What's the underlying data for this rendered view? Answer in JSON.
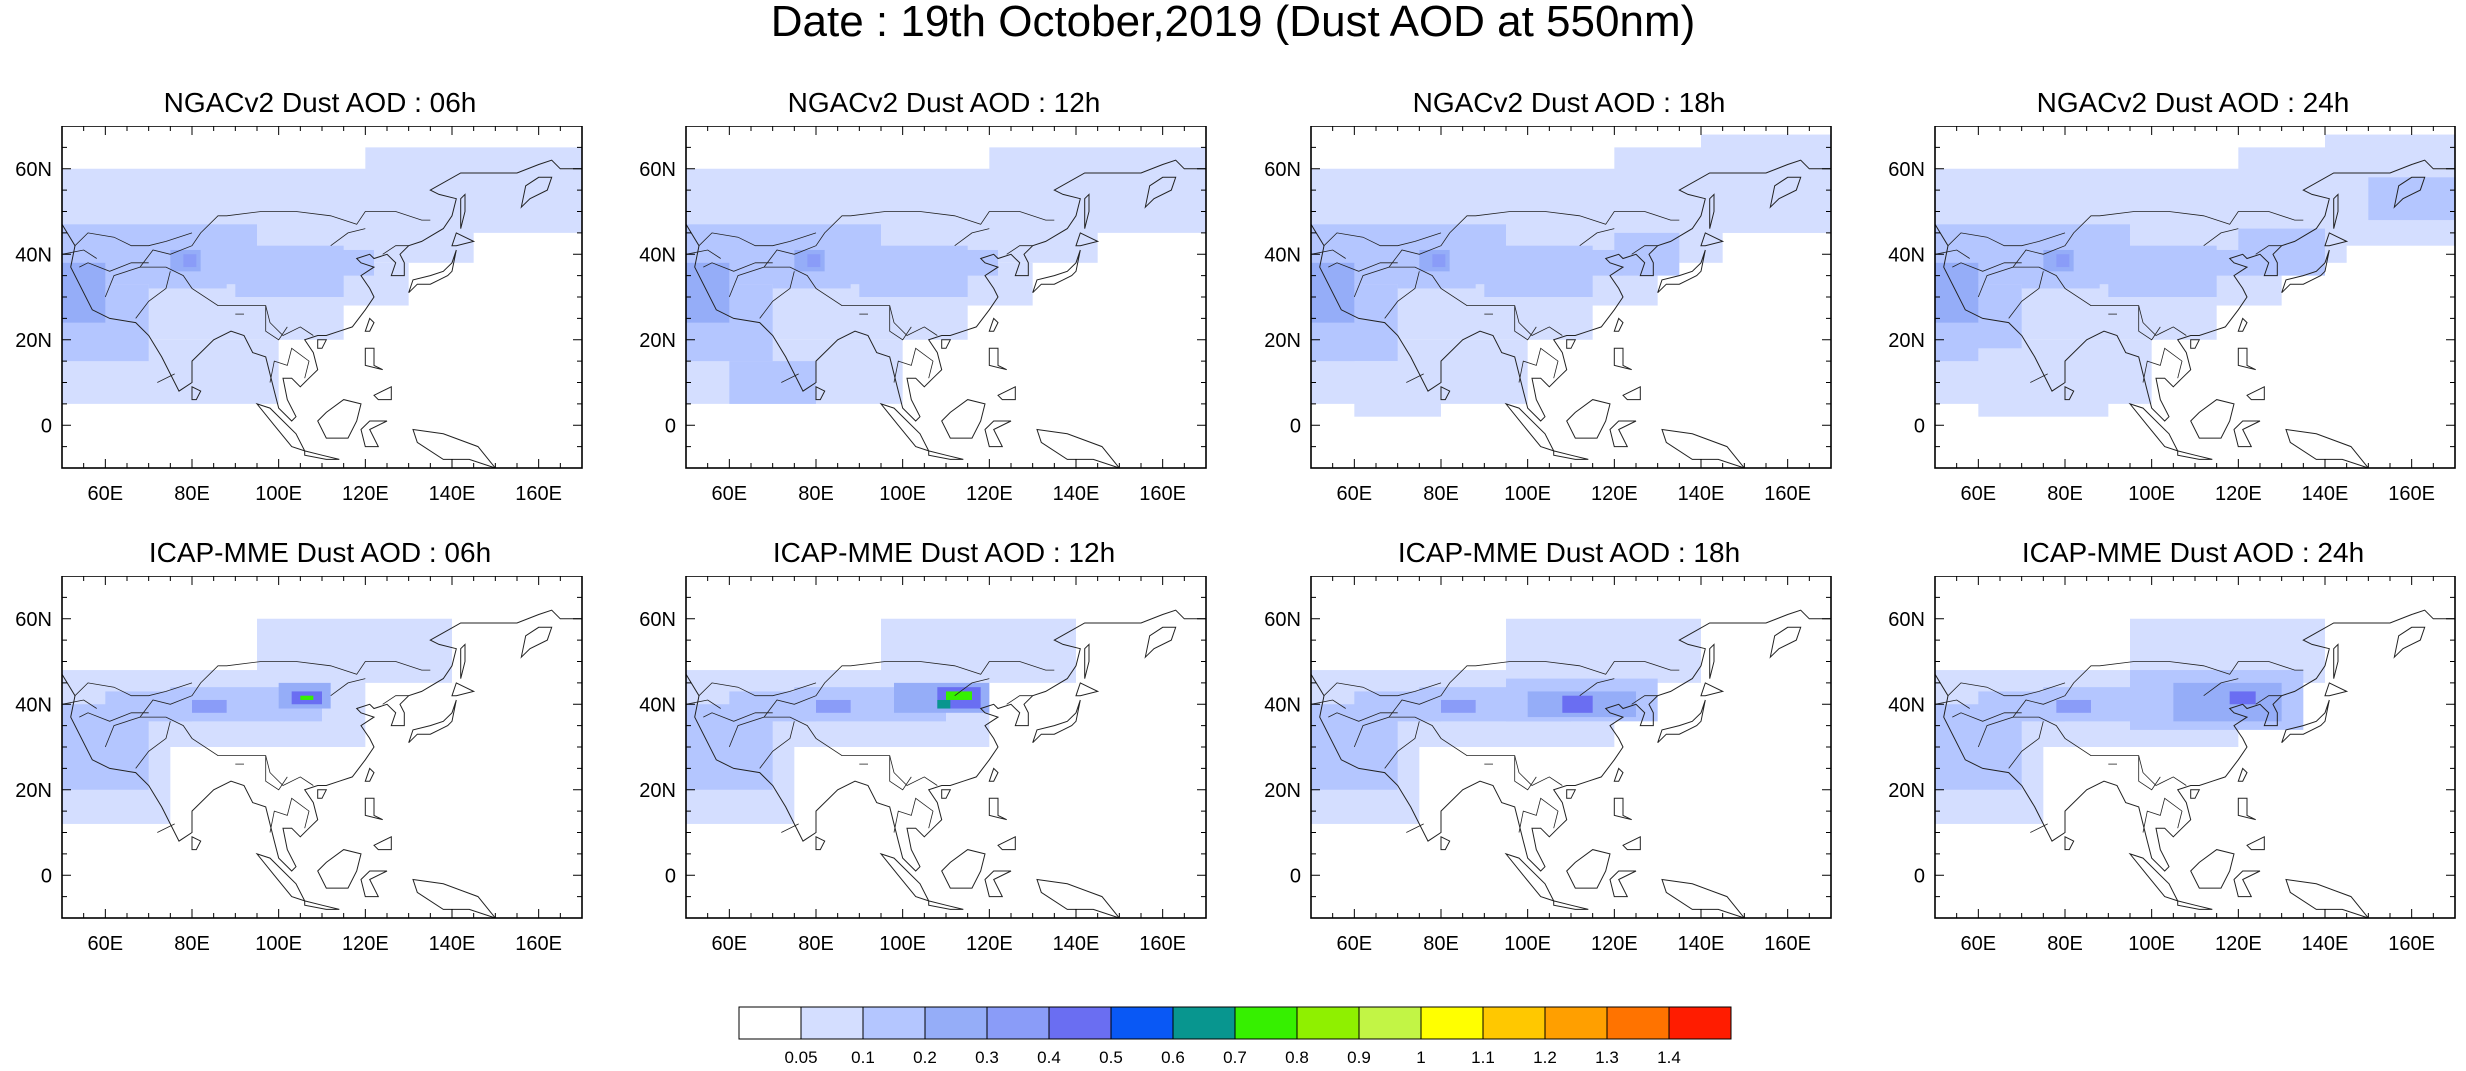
{
  "title": "Date : 19th October,2019 (Dust AOD at 550nm)",
  "axes": {
    "lat_ticks": [
      "60N",
      "40N",
      "20N",
      "0"
    ],
    "lon_ticks": [
      "60E",
      "80E",
      "100E",
      "120E",
      "140E",
      "160E"
    ]
  },
  "panels": [
    {
      "title": "NGACv2 Dust AOD : 06h",
      "model": "NGACv2",
      "hour": "06h"
    },
    {
      "title": "NGACv2 Dust AOD : 12h",
      "model": "NGACv2",
      "hour": "12h"
    },
    {
      "title": "NGACv2 Dust AOD : 18h",
      "model": "NGACv2",
      "hour": "18h"
    },
    {
      "title": "NGACv2 Dust AOD : 24h",
      "model": "NGACv2",
      "hour": "24h"
    },
    {
      "title": "ICAP-MME Dust AOD : 06h",
      "model": "ICAP-MME",
      "hour": "06h"
    },
    {
      "title": "ICAP-MME Dust AOD : 12h",
      "model": "ICAP-MME",
      "hour": "12h"
    },
    {
      "title": "ICAP-MME Dust AOD : 18h",
      "model": "ICAP-MME",
      "hour": "18h"
    },
    {
      "title": "ICAP-MME Dust AOD : 24h",
      "model": "ICAP-MME",
      "hour": "24h"
    }
  ],
  "colorbar": {
    "labels": [
      "0.05",
      "0.1",
      "0.2",
      "0.3",
      "0.4",
      "0.5",
      "0.6",
      "0.7",
      "0.8",
      "0.9",
      "1",
      "1.1",
      "1.2",
      "1.3",
      "1.4"
    ],
    "colors": [
      "#ffffff",
      "#d4deff",
      "#b4c6ff",
      "#95adf8",
      "#8a9cf8",
      "#6a6ef2",
      "#0958f5",
      "#08968f",
      "#36f000",
      "#8ff000",
      "#c2f545",
      "#ffff00",
      "#ffc800",
      "#ff9f00",
      "#ff7300",
      "#ff1c00"
    ]
  }
}
